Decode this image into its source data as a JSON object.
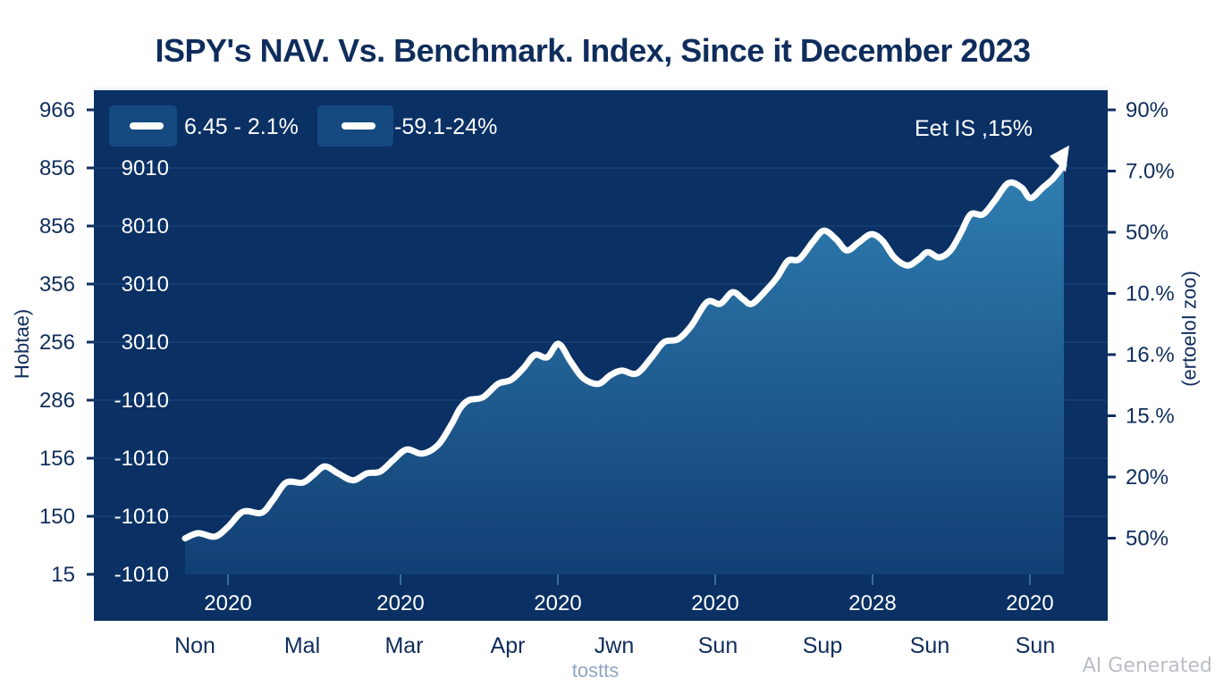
{
  "title": "ISPY's NAV. Vs. Benchmark. Index, Since it December 2023",
  "watermark": "AI Generated",
  "colors": {
    "panel_bg": "#0c3366",
    "panel_dark": "#072a5a",
    "area_top": "#2e7aac",
    "area_bottom": "#124a80",
    "line": "#ffffff",
    "text_dark": "#0f2d5c",
    "legend_box": "#154a80",
    "gridline": "#2a5288"
  },
  "chart_data": {
    "type": "area",
    "title": "ISPY's NAV. Vs. Benchmark. Index, Since it December 2023",
    "xlabel": "tostts",
    "ylabel_left": "Hobtae)",
    "ylabel_right": "(ertoeloI zoo)",
    "grid": true,
    "legend_position": "top-left",
    "legend": [
      {
        "label": "6.45 - 2.1%",
        "swatch": "line"
      },
      {
        "label": "-59.1-24%",
        "swatch": "line"
      }
    ],
    "annotation": "Eet IS ,15%",
    "left_outer_ticks": [
      "966",
      "856",
      "856",
      "356",
      "256",
      "286",
      "156",
      "150",
      "15"
    ],
    "left_inner_ticks": [
      "9010",
      "8010",
      "3010",
      "3010",
      "-1010",
      "-1010",
      "-1010",
      "-1010"
    ],
    "right_ticks": [
      "90%",
      "7.0%",
      "50%",
      "10.%",
      "16.%",
      "15.%",
      "20%",
      "50%"
    ],
    "x_year_ticks": [
      "2020",
      "2020",
      "2020",
      "2020",
      "2028",
      "2020"
    ],
    "x_month_ticks": [
      "Non",
      "Mal",
      "Mar",
      "Apr",
      "Jwn",
      "Sun",
      "Sup",
      "Sun",
      "Sun"
    ],
    "y_scale_note": "values in gridline units: 0 = bottom gridline (-1010), 7 = top gridline (9010)",
    "ylim": [
      0,
      7
    ],
    "xlim": [
      0,
      1
    ],
    "series": [
      {
        "name": "NAV",
        "x": [
          0.0,
          0.015,
          0.034,
          0.049,
          0.066,
          0.087,
          0.1,
          0.115,
          0.134,
          0.146,
          0.159,
          0.174,
          0.191,
          0.207,
          0.222,
          0.237,
          0.252,
          0.27,
          0.288,
          0.303,
          0.313,
          0.323,
          0.339,
          0.356,
          0.371,
          0.385,
          0.398,
          0.412,
          0.425,
          0.439,
          0.453,
          0.47,
          0.484,
          0.497,
          0.514,
          0.531,
          0.545,
          0.561,
          0.576,
          0.594,
          0.609,
          0.623,
          0.635,
          0.645,
          0.661,
          0.674,
          0.686,
          0.699,
          0.715,
          0.727,
          0.741,
          0.753,
          0.766,
          0.781,
          0.794,
          0.807,
          0.822,
          0.835,
          0.845,
          0.858,
          0.871,
          0.883,
          0.894,
          0.908,
          0.921,
          0.937,
          0.952,
          0.962,
          0.976,
          0.988,
          1.0
        ],
        "values": [
          0.62,
          0.71,
          0.65,
          0.82,
          1.08,
          1.06,
          1.28,
          1.58,
          1.58,
          1.71,
          1.86,
          1.74,
          1.62,
          1.74,
          1.77,
          1.97,
          2.15,
          2.08,
          2.23,
          2.58,
          2.86,
          3.0,
          3.05,
          3.28,
          3.35,
          3.55,
          3.78,
          3.74,
          3.97,
          3.66,
          3.38,
          3.28,
          3.43,
          3.51,
          3.46,
          3.74,
          4.0,
          4.05,
          4.28,
          4.69,
          4.66,
          4.86,
          4.74,
          4.66,
          4.89,
          5.12,
          5.4,
          5.43,
          5.74,
          5.92,
          5.77,
          5.58,
          5.71,
          5.86,
          5.74,
          5.46,
          5.32,
          5.43,
          5.55,
          5.46,
          5.58,
          5.89,
          6.2,
          6.2,
          6.43,
          6.74,
          6.66,
          6.48,
          6.66,
          6.82,
          7.05
        ]
      }
    ]
  }
}
